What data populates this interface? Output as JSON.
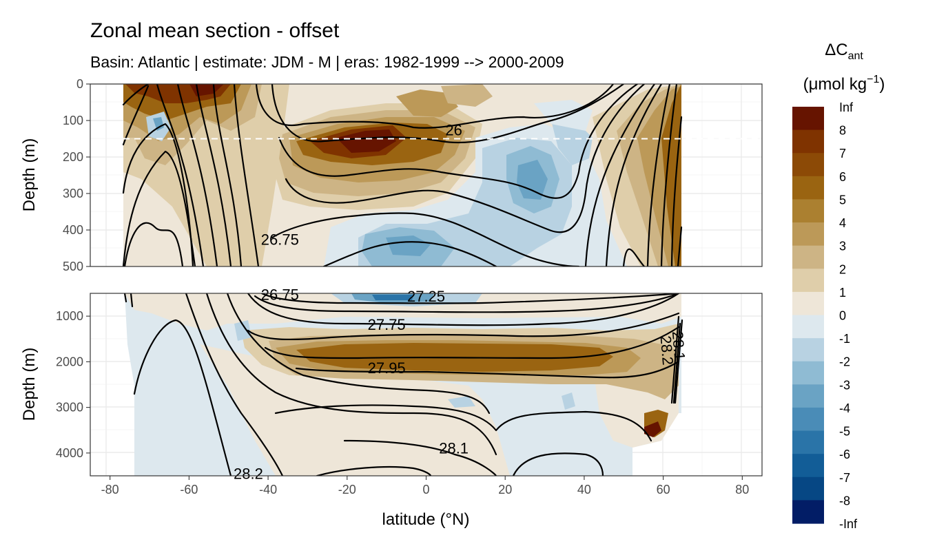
{
  "chart_data": {
    "type": "heatmap",
    "title": "Zonal mean section - offset",
    "subtitle": "Basin: Atlantic | estimate: JDM - M | eras: 1982-1999 --> 2000-2009",
    "xlabel": "latitude (°N)",
    "ylabel": "Depth (m)",
    "xlim": [
      -85,
      85
    ],
    "x_ticks": [
      "-80",
      "-60",
      "-40",
      "-20",
      "0",
      "20",
      "40",
      "60",
      "80"
    ],
    "panels": [
      {
        "name": "upper",
        "ylim": [
          500,
          0
        ],
        "y_ticks": [
          "0",
          "100",
          "200",
          "300",
          "400",
          "500"
        ],
        "reference_line_depth": 150,
        "contour_labels": [
          {
            "text": "26",
            "lat": 7,
            "depth": 125
          },
          {
            "text": "26.75",
            "lat": -37,
            "depth": 425
          }
        ]
      },
      {
        "name": "lower",
        "ylim": [
          4500,
          500
        ],
        "y_ticks": [
          "1000",
          "2000",
          "3000",
          "4000"
        ],
        "contour_labels": [
          {
            "text": "26.75",
            "lat": -37,
            "depth": 520
          },
          {
            "text": "27.25",
            "lat": 0,
            "depth": 560
          },
          {
            "text": "27.75",
            "lat": -10,
            "depth": 1180
          },
          {
            "text": "27.95",
            "lat": -10,
            "depth": 2130
          },
          {
            "text": "28.1",
            "lat": 7,
            "depth": 3890
          },
          {
            "text": "28.2",
            "lat": -45,
            "depth": 4450
          },
          {
            "text": "28.2",
            "lat": 61,
            "depth": 1750
          },
          {
            "text": "28.1",
            "lat": 64,
            "depth": 1650
          }
        ]
      }
    ],
    "legend": {
      "title": "ΔC",
      "title_subscript": "ant",
      "unit_prefix": "(μmol kg",
      "unit_superscript": "−1",
      "unit_suffix": ")",
      "breaks": [
        "Inf",
        "8",
        "7",
        "6",
        "5",
        "4",
        "3",
        "2",
        "1",
        "0",
        "-1",
        "-2",
        "-3",
        "-4",
        "-5",
        "-6",
        "-7",
        "-8",
        "-Inf"
      ],
      "colors": [
        "#661400",
        "#7f3300",
        "#8c4a06",
        "#9a6411",
        "#ab8030",
        "#bc9958",
        "#cdb485",
        "#dfceaa",
        "#eee6d8",
        "#dde8ee",
        "#b8d2e2",
        "#8fbbd3",
        "#6aa3c4",
        "#4a8cb7",
        "#2a74a8",
        "#125d97",
        "#064784",
        "#021d66"
      ]
    }
  }
}
